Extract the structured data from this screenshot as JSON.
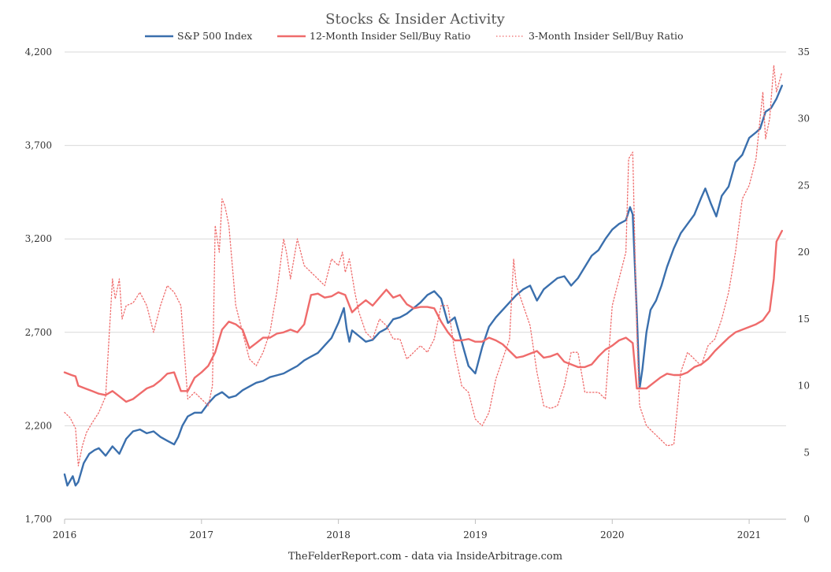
{
  "chart_data": {
    "type": "line",
    "title": "Stocks & Insider Activity",
    "source_note": "TheFelderReport.com - data via InsideArbitrage.com",
    "x_ticks": [
      "2016",
      "2017",
      "2018",
      "2019",
      "2020",
      "2021"
    ],
    "xlim": [
      2016.0,
      2021.27
    ],
    "y_left": {
      "ylim": [
        1700,
        4200
      ],
      "ticks": [
        "1,700",
        "2,200",
        "2,700",
        "3,200",
        "3,700",
        "4,200"
      ]
    },
    "y_right": {
      "ylim": [
        0,
        35
      ],
      "ticks": [
        "0",
        "5",
        "10",
        "15",
        "20",
        "25",
        "30",
        "35"
      ]
    },
    "grid": "horizontal",
    "legend_position": "top",
    "series": [
      {
        "name": "S&P 500 Index",
        "axis": "left",
        "color": "#3a6fad",
        "style": "solid",
        "x": [
          2016.0,
          2016.02,
          2016.06,
          2016.08,
          2016.1,
          2016.14,
          2016.18,
          2016.22,
          2016.25,
          2016.3,
          2016.35,
          2016.4,
          2016.45,
          2016.5,
          2016.55,
          2016.6,
          2016.65,
          2016.7,
          2016.75,
          2016.8,
          2016.83,
          2016.86,
          2016.9,
          2016.95,
          2017.0,
          2017.05,
          2017.1,
          2017.15,
          2017.2,
          2017.25,
          2017.3,
          2017.35,
          2017.4,
          2017.45,
          2017.5,
          2017.55,
          2017.6,
          2017.65,
          2017.7,
          2017.75,
          2017.8,
          2017.85,
          2017.9,
          2017.95,
          2018.0,
          2018.04,
          2018.06,
          2018.08,
          2018.1,
          2018.15,
          2018.2,
          2018.25,
          2018.3,
          2018.35,
          2018.4,
          2018.45,
          2018.5,
          2018.55,
          2018.6,
          2018.65,
          2018.7,
          2018.75,
          2018.8,
          2018.85,
          2018.9,
          2018.95,
          2019.0,
          2019.05,
          2019.1,
          2019.15,
          2019.2,
          2019.25,
          2019.3,
          2019.35,
          2019.4,
          2019.45,
          2019.5,
          2019.55,
          2019.6,
          2019.65,
          2019.7,
          2019.75,
          2019.8,
          2019.85,
          2019.9,
          2019.95,
          2020.0,
          2020.05,
          2020.1,
          2020.13,
          2020.15,
          2020.18,
          2020.2,
          2020.22,
          2020.25,
          2020.28,
          2020.32,
          2020.36,
          2020.4,
          2020.45,
          2020.5,
          2020.55,
          2020.6,
          2020.65,
          2020.68,
          2020.72,
          2020.76,
          2020.8,
          2020.85,
          2020.9,
          2020.95,
          2021.0,
          2021.05,
          2021.08,
          2021.12,
          2021.16,
          2021.2,
          2021.24
        ],
        "values": [
          1940,
          1880,
          1930,
          1880,
          1900,
          2000,
          2050,
          2070,
          2080,
          2040,
          2090,
          2050,
          2130,
          2170,
          2180,
          2160,
          2170,
          2140,
          2120,
          2100,
          2140,
          2200,
          2250,
          2270,
          2270,
          2320,
          2360,
          2380,
          2350,
          2360,
          2390,
          2410,
          2430,
          2440,
          2460,
          2470,
          2480,
          2500,
          2520,
          2550,
          2570,
          2590,
          2630,
          2670,
          2750,
          2830,
          2720,
          2650,
          2710,
          2680,
          2650,
          2660,
          2700,
          2720,
          2770,
          2780,
          2800,
          2830,
          2860,
          2900,
          2920,
          2880,
          2750,
          2780,
          2650,
          2520,
          2480,
          2620,
          2730,
          2780,
          2820,
          2860,
          2900,
          2930,
          2950,
          2870,
          2930,
          2960,
          2990,
          3000,
          2950,
          2990,
          3050,
          3110,
          3140,
          3200,
          3250,
          3280,
          3300,
          3370,
          3330,
          2800,
          2400,
          2500,
          2700,
          2820,
          2870,
          2950,
          3050,
          3150,
          3230,
          3280,
          3330,
          3420,
          3470,
          3390,
          3320,
          3430,
          3480,
          3610,
          3650,
          3740,
          3770,
          3790,
          3880,
          3900,
          3950,
          4020
        ]
      },
      {
        "name": "12-Month Insider Sell/Buy Ratio",
        "axis": "right",
        "color": "#ef6b6b",
        "style": "solid",
        "x": [
          2016.0,
          2016.05,
          2016.08,
          2016.1,
          2016.15,
          2016.2,
          2016.25,
          2016.3,
          2016.35,
          2016.4,
          2016.45,
          2016.5,
          2016.55,
          2016.6,
          2016.65,
          2016.7,
          2016.75,
          2016.8,
          2016.85,
          2016.9,
          2016.95,
          2017.0,
          2017.05,
          2017.1,
          2017.15,
          2017.2,
          2017.25,
          2017.3,
          2017.35,
          2017.4,
          2017.45,
          2017.5,
          2017.55,
          2017.6,
          2017.65,
          2017.7,
          2017.75,
          2017.8,
          2017.85,
          2017.9,
          2017.95,
          2018.0,
          2018.05,
          2018.1,
          2018.15,
          2018.2,
          2018.25,
          2018.3,
          2018.35,
          2018.4,
          2018.45,
          2018.5,
          2018.55,
          2018.6,
          2018.65,
          2018.7,
          2018.75,
          2018.8,
          2018.85,
          2018.9,
          2018.95,
          2019.0,
          2019.05,
          2019.1,
          2019.15,
          2019.2,
          2019.25,
          2019.3,
          2019.35,
          2019.4,
          2019.45,
          2019.5,
          2019.55,
          2019.6,
          2019.65,
          2019.7,
          2019.75,
          2019.8,
          2019.85,
          2019.9,
          2019.95,
          2020.0,
          2020.05,
          2020.1,
          2020.15,
          2020.18,
          2020.2,
          2020.25,
          2020.3,
          2020.35,
          2020.4,
          2020.45,
          2020.5,
          2020.55,
          2020.6,
          2020.65,
          2020.7,
          2020.75,
          2020.8,
          2020.85,
          2020.9,
          2020.95,
          2021.0,
          2021.05,
          2021.1,
          2021.15,
          2021.18,
          2021.2,
          2021.24
        ],
        "values": [
          11.0,
          10.8,
          10.7,
          10.0,
          9.8,
          9.6,
          9.4,
          9.3,
          9.6,
          9.2,
          8.8,
          9.0,
          9.4,
          9.8,
          10.0,
          10.4,
          10.9,
          11.0,
          9.6,
          9.6,
          10.6,
          11.0,
          11.5,
          12.5,
          14.2,
          14.8,
          14.6,
          14.2,
          12.8,
          13.2,
          13.6,
          13.6,
          13.9,
          14.0,
          14.2,
          14.0,
          14.6,
          16.8,
          16.9,
          16.6,
          16.7,
          17.0,
          16.8,
          15.5,
          16.0,
          16.4,
          16.0,
          16.6,
          17.2,
          16.6,
          16.8,
          16.1,
          15.8,
          15.9,
          15.9,
          15.8,
          14.8,
          14.0,
          13.4,
          13.4,
          13.5,
          13.3,
          13.3,
          13.6,
          13.4,
          13.1,
          12.6,
          12.1,
          12.2,
          12.4,
          12.6,
          12.1,
          12.2,
          12.4,
          11.8,
          11.6,
          11.4,
          11.4,
          11.6,
          12.2,
          12.7,
          13.0,
          13.4,
          13.6,
          13.2,
          9.8,
          9.8,
          9.8,
          10.2,
          10.6,
          10.9,
          10.8,
          10.8,
          11.0,
          11.4,
          11.6,
          12.0,
          12.6,
          13.1,
          13.6,
          14.0,
          14.2,
          14.4,
          14.6,
          14.9,
          15.6,
          18.0,
          20.8,
          21.6
        ]
      },
      {
        "name": "3-Month Insider Sell/Buy Ratio",
        "axis": "right",
        "color": "#ef6b6b",
        "style": "dotted",
        "x": [
          2016.0,
          2016.04,
          2016.08,
          2016.1,
          2016.13,
          2016.16,
          2016.2,
          2016.25,
          2016.3,
          2016.35,
          2016.37,
          2016.4,
          2016.42,
          2016.45,
          2016.5,
          2016.55,
          2016.6,
          2016.65,
          2016.7,
          2016.75,
          2016.8,
          2016.85,
          2016.9,
          2016.95,
          2017.0,
          2017.05,
          2017.08,
          2017.1,
          2017.13,
          2017.15,
          2017.17,
          2017.2,
          2017.25,
          2017.3,
          2017.35,
          2017.4,
          2017.45,
          2017.5,
          2017.55,
          2017.6,
          2017.62,
          2017.65,
          2017.7,
          2017.75,
          2017.8,
          2017.85,
          2017.9,
          2017.95,
          2018.0,
          2018.03,
          2018.05,
          2018.08,
          2018.12,
          2018.15,
          2018.2,
          2018.25,
          2018.3,
          2018.35,
          2018.4,
          2018.45,
          2018.5,
          2018.55,
          2018.6,
          2018.65,
          2018.7,
          2018.75,
          2018.8,
          2018.85,
          2018.9,
          2018.95,
          2019.0,
          2019.05,
          2019.1,
          2019.15,
          2019.2,
          2019.25,
          2019.28,
          2019.3,
          2019.35,
          2019.4,
          2019.45,
          2019.5,
          2019.55,
          2019.6,
          2019.65,
          2019.7,
          2019.75,
          2019.8,
          2019.85,
          2019.9,
          2019.95,
          2020.0,
          2020.05,
          2020.1,
          2020.12,
          2020.15,
          2020.18,
          2020.2,
          2020.25,
          2020.3,
          2020.35,
          2020.4,
          2020.45,
          2020.5,
          2020.55,
          2020.6,
          2020.65,
          2020.7,
          2020.75,
          2020.8,
          2020.85,
          2020.9,
          2020.95,
          2021.0,
          2021.05,
          2021.08,
          2021.1,
          2021.12,
          2021.15,
          2021.18,
          2021.2,
          2021.24
        ],
        "values": [
          8.0,
          7.6,
          6.8,
          4.0,
          5.5,
          6.5,
          7.2,
          8.0,
          9.2,
          18.0,
          16.5,
          18.0,
          15.0,
          16.0,
          16.2,
          17.0,
          16.0,
          14.0,
          16.0,
          17.5,
          17.0,
          16.0,
          9.0,
          9.5,
          9.0,
          8.5,
          10.0,
          22.0,
          20.0,
          24.0,
          23.5,
          22.0,
          16.0,
          14.0,
          12.0,
          11.5,
          12.5,
          14.0,
          17.0,
          21.0,
          20.0,
          18.0,
          21.0,
          19.0,
          18.5,
          18.0,
          17.5,
          19.5,
          19.0,
          20.0,
          18.5,
          19.5,
          17.0,
          15.5,
          14.0,
          13.5,
          15.0,
          14.5,
          13.5,
          13.5,
          12.0,
          12.5,
          13.0,
          12.5,
          13.5,
          16.0,
          16.0,
          12.5,
          10.0,
          9.5,
          7.5,
          7.0,
          8.0,
          10.5,
          12.0,
          13.5,
          19.5,
          17.5,
          16.0,
          14.5,
          11.0,
          8.5,
          8.3,
          8.5,
          10.0,
          12.5,
          12.5,
          9.5,
          9.5,
          9.5,
          9.0,
          16.0,
          18.0,
          20.0,
          27.0,
          27.5,
          14.0,
          8.5,
          7.0,
          6.5,
          6.0,
          5.5,
          5.6,
          11.0,
          12.5,
          12.0,
          11.5,
          13.0,
          13.5,
          15.0,
          17.0,
          20.0,
          24.0,
          25.0,
          27.0,
          30.0,
          32.0,
          28.5,
          30.0,
          34.0,
          32.0,
          33.5
        ]
      }
    ]
  }
}
